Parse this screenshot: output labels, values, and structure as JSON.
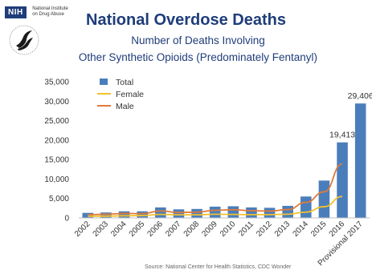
{
  "logo": {
    "nih_label": "NIH",
    "nih_line1": "National Institute",
    "nih_line2": "on Drug Abuse"
  },
  "title": "National Overdose Deaths",
  "subtitle_line1": "Number of Deaths Involving",
  "subtitle_line2": "Other Synthetic Opioids (Predominately Fentanyl)",
  "source": "Source: National Center for Health Statistics, CDC Wonder",
  "colors": {
    "title": "#1f3d7a",
    "bar": "#4a7ebb",
    "female": "#f2c12e",
    "male": "#e07b39"
  },
  "chart_data": {
    "type": "bar",
    "categories": [
      "2002",
      "2003",
      "2004",
      "2005",
      "2006",
      "2007",
      "2008",
      "2009",
      "2010",
      "2011",
      "2012",
      "2013",
      "2014",
      "2015",
      "2016",
      "Provisional 2017"
    ],
    "series": [
      {
        "name": "Total",
        "type": "bar",
        "values": [
          1300,
          1400,
          1700,
          1700,
          2700,
          2200,
          2300,
          2900,
          3000,
          2700,
          2600,
          3100,
          5500,
          9600,
          19413,
          29406
        ]
      },
      {
        "name": "Female",
        "type": "line",
        "values": [
          450,
          450,
          550,
          600,
          900,
          800,
          800,
          950,
          900,
          850,
          850,
          950,
          1500,
          2900,
          5500,
          null
        ]
      },
      {
        "name": "Male",
        "type": "line",
        "values": [
          850,
          950,
          1150,
          1100,
          1800,
          1400,
          1500,
          1950,
          2100,
          1850,
          1750,
          2150,
          4000,
          6700,
          13900,
          null
        ]
      }
    ],
    "data_labels": [
      {
        "category": "2016",
        "text": "19,413"
      },
      {
        "category": "Provisional 2017",
        "text": "29,406"
      }
    ],
    "y_ticks": [
      "0",
      "5,000",
      "10,000",
      "15,000",
      "20,000",
      "25,000",
      "30,000",
      "35,000"
    ],
    "ylim": [
      0,
      35000
    ],
    "legend": {
      "position": "top-left",
      "entries": [
        "Total",
        "Female",
        "Male"
      ]
    },
    "grid": false
  }
}
